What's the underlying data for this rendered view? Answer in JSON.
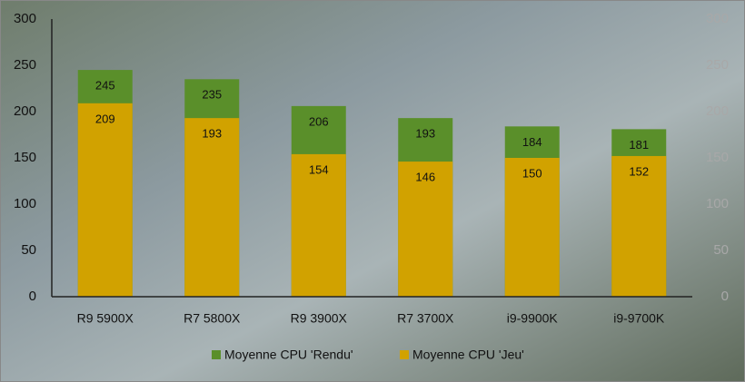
{
  "chart_data": {
    "type": "bar",
    "categories": [
      "R9 5900X",
      "R7 5800X",
      "R9 3900X",
      "R7 3700X",
      "i9-9900K",
      "i9-9700K"
    ],
    "series": [
      {
        "name": "Moyenne CPU 'Rendu'",
        "color": "#5a8f2a",
        "values": [
          245,
          235,
          206,
          193,
          184,
          181
        ]
      },
      {
        "name": "Moyenne CPU 'Jeu'",
        "color": "#d1a200",
        "values": [
          209,
          193,
          154,
          146,
          150,
          152
        ]
      }
    ],
    "ylim": [
      0,
      300
    ],
    "yticks": [
      0,
      50,
      100,
      150,
      200,
      250,
      300
    ],
    "y2lim": [
      0,
      300
    ],
    "y2ticks": [
      0,
      50,
      100,
      150,
      200,
      250,
      300
    ],
    "legend": "bottom"
  }
}
